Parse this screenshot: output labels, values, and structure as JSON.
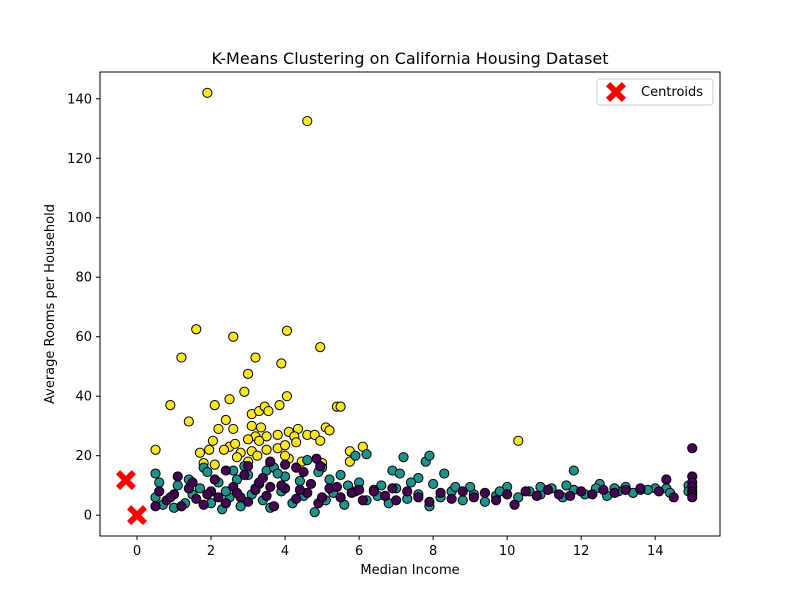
{
  "chart_data": {
    "type": "scatter",
    "title": "K-Means Clustering on California Housing Dataset",
    "xlabel": "Median Income",
    "ylabel": "Average Rooms per Household",
    "xlim": [
      -1,
      15.75
    ],
    "ylim": [
      -7,
      149
    ],
    "xticks": [
      0,
      2,
      4,
      6,
      8,
      10,
      12,
      14
    ],
    "yticks": [
      0,
      20,
      40,
      60,
      80,
      100,
      120,
      140
    ],
    "grid": false,
    "legend_position": "top-right",
    "legend": [
      "Centroids"
    ],
    "colors": {
      "purple": "#440154",
      "teal": "#21918c",
      "yellow": "#fde725",
      "centroid": "#ff0000"
    },
    "series": [
      {
        "color_key": "yellow",
        "points": [
          [
            1.9,
            142
          ],
          [
            4.6,
            132.5
          ],
          [
            1.6,
            62.5
          ],
          [
            4.05,
            62
          ],
          [
            2.6,
            60
          ],
          [
            1.2,
            53
          ],
          [
            3.2,
            53
          ],
          [
            4.95,
            56.5
          ],
          [
            3.9,
            51
          ],
          [
            3.0,
            47.5
          ],
          [
            2.9,
            41.5
          ],
          [
            0.9,
            37
          ],
          [
            2.1,
            37
          ],
          [
            2.5,
            39
          ],
          [
            4.05,
            40
          ],
          [
            3.85,
            37
          ],
          [
            5.4,
            36.5
          ],
          [
            5.5,
            36.5
          ],
          [
            3.1,
            34
          ],
          [
            3.3,
            35
          ],
          [
            3.45,
            36.5
          ],
          [
            3.55,
            35
          ],
          [
            2.4,
            32
          ],
          [
            1.4,
            31.5
          ],
          [
            3.1,
            30
          ],
          [
            2.2,
            29
          ],
          [
            2.6,
            29
          ],
          [
            3.35,
            29.5
          ],
          [
            3.8,
            27
          ],
          [
            4.1,
            28
          ],
          [
            4.35,
            29
          ],
          [
            5.1,
            29.5
          ],
          [
            5.2,
            28.5
          ],
          [
            2.05,
            25
          ],
          [
            2.5,
            23
          ],
          [
            2.65,
            24
          ],
          [
            3.2,
            26.5
          ],
          [
            3.5,
            26.5
          ],
          [
            3.0,
            25.5
          ],
          [
            3.3,
            25
          ],
          [
            4.25,
            26.5
          ],
          [
            4.6,
            27
          ],
          [
            4.8,
            27
          ],
          [
            4.95,
            25
          ],
          [
            4.3,
            24.5
          ],
          [
            1.95,
            22
          ],
          [
            1.7,
            21
          ],
          [
            2.35,
            22
          ],
          [
            2.8,
            21
          ],
          [
            3.1,
            21.5
          ],
          [
            3.5,
            22
          ],
          [
            3.8,
            22.5
          ],
          [
            4.0,
            23.5
          ],
          [
            0.5,
            22
          ],
          [
            5.75,
            21.5
          ],
          [
            6.1,
            23
          ],
          [
            10.3,
            25
          ],
          [
            1.8,
            17.5
          ],
          [
            2.1,
            17
          ],
          [
            3.0,
            18
          ],
          [
            3.6,
            17.5
          ],
          [
            4.1,
            19
          ],
          [
            4.45,
            18
          ],
          [
            5.0,
            17.5
          ],
          [
            5.75,
            18
          ],
          [
            2.7,
            19.5
          ],
          [
            3.25,
            20
          ],
          [
            4.0,
            20
          ]
        ]
      },
      {
        "color_key": "teal",
        "points": [
          [
            0.5,
            14
          ],
          [
            1.8,
            16
          ],
          [
            1.9,
            14.5
          ],
          [
            2.6,
            15
          ],
          [
            2.9,
            16.5
          ],
          [
            3.5,
            15
          ],
          [
            3.7,
            16
          ],
          [
            4.6,
            18.5
          ],
          [
            5.0,
            16
          ],
          [
            5.5,
            13.5
          ],
          [
            5.9,
            20
          ],
          [
            6.2,
            20.5
          ],
          [
            7.2,
            19.5
          ],
          [
            7.8,
            18
          ],
          [
            7.9,
            20
          ],
          [
            6.9,
            15
          ],
          [
            7.1,
            14
          ],
          [
            7.6,
            12.5
          ],
          [
            8.3,
            14
          ],
          [
            11.8,
            15
          ],
          [
            12.5,
            10.5
          ],
          [
            13.2,
            9.5
          ],
          [
            14.0,
            9
          ],
          [
            14.9,
            10
          ],
          [
            0.5,
            6
          ],
          [
            0.7,
            3.5
          ],
          [
            1.0,
            2.5
          ],
          [
            1.3,
            4
          ],
          [
            1.5,
            7
          ],
          [
            1.7,
            9
          ],
          [
            2.0,
            4
          ],
          [
            2.3,
            2
          ],
          [
            2.5,
            6
          ],
          [
            2.8,
            3
          ],
          [
            3.1,
            7
          ],
          [
            3.4,
            5
          ],
          [
            3.6,
            2.5
          ],
          [
            3.9,
            8
          ],
          [
            4.2,
            4
          ],
          [
            4.5,
            6.5
          ],
          [
            4.8,
            1
          ],
          [
            5.1,
            5
          ],
          [
            5.3,
            7.5
          ],
          [
            5.6,
            3.5
          ],
          [
            5.9,
            8
          ],
          [
            6.2,
            5
          ],
          [
            6.5,
            6.5
          ],
          [
            6.8,
            4
          ],
          [
            7.0,
            9
          ],
          [
            7.3,
            5.5
          ],
          [
            7.6,
            7
          ],
          [
            7.9,
            3
          ],
          [
            8.2,
            6
          ],
          [
            8.5,
            8
          ],
          [
            8.8,
            5
          ],
          [
            9.1,
            7
          ],
          [
            9.4,
            4.5
          ],
          [
            9.7,
            6.5
          ],
          [
            10.0,
            9.5
          ],
          [
            10.3,
            6
          ],
          [
            10.6,
            8
          ],
          [
            10.9,
            7
          ],
          [
            11.2,
            9
          ],
          [
            11.5,
            6
          ],
          [
            11.8,
            8.5
          ],
          [
            12.1,
            7
          ],
          [
            12.4,
            9
          ],
          [
            12.7,
            6.5
          ],
          [
            13.0,
            8
          ],
          [
            13.4,
            7.5
          ],
          [
            13.8,
            8.5
          ],
          [
            14.3,
            9
          ],
          [
            14.9,
            8
          ],
          [
            2.2,
            11
          ],
          [
            2.7,
            12
          ],
          [
            3.3,
            10.5
          ],
          [
            4.0,
            13
          ],
          [
            4.4,
            11.5
          ],
          [
            5.2,
            12
          ],
          [
            6.0,
            11
          ],
          [
            6.6,
            10
          ],
          [
            7.4,
            11
          ],
          [
            8.0,
            10.5
          ],
          [
            9.0,
            9.5
          ],
          [
            1.4,
            12
          ],
          [
            3.0,
            13.5
          ],
          [
            3.8,
            14
          ],
          [
            4.9,
            14.5
          ],
          [
            0.6,
            11
          ],
          [
            1.1,
            10
          ],
          [
            2.4,
            8
          ],
          [
            3.2,
            9
          ],
          [
            5.7,
            10
          ],
          [
            6.4,
            8.5
          ],
          [
            8.6,
            9.5
          ],
          [
            9.8,
            8
          ],
          [
            10.9,
            9.5
          ],
          [
            11.6,
            10
          ],
          [
            12.9,
            9
          ],
          [
            13.6,
            8.5
          ],
          [
            14.4,
            7.5
          ]
        ]
      },
      {
        "color_key": "purple",
        "points": [
          [
            1.1,
            13
          ],
          [
            2.4,
            15
          ],
          [
            3.0,
            16.5
          ],
          [
            3.6,
            18
          ],
          [
            4.0,
            17
          ],
          [
            4.3,
            16
          ],
          [
            4.5,
            14.5
          ],
          [
            4.85,
            19
          ],
          [
            4.95,
            16.5
          ],
          [
            2.9,
            13.5
          ],
          [
            3.4,
            12.5
          ],
          [
            0.5,
            3
          ],
          [
            0.6,
            8
          ],
          [
            0.8,
            5
          ],
          [
            1.0,
            7
          ],
          [
            1.2,
            3
          ],
          [
            1.4,
            9
          ],
          [
            1.6,
            5.5
          ],
          [
            1.8,
            3.5
          ],
          [
            2.0,
            8
          ],
          [
            2.2,
            6
          ],
          [
            2.4,
            4
          ],
          [
            2.6,
            9.5
          ],
          [
            2.8,
            6
          ],
          [
            3.0,
            4.5
          ],
          [
            3.2,
            8.5
          ],
          [
            3.5,
            6.5
          ],
          [
            3.7,
            3
          ],
          [
            4.0,
            9
          ],
          [
            4.3,
            5.5
          ],
          [
            4.6,
            7.5
          ],
          [
            4.9,
            4
          ],
          [
            5.2,
            9
          ],
          [
            5.5,
            6
          ],
          [
            5.8,
            7.5
          ],
          [
            6.1,
            5
          ],
          [
            6.4,
            8
          ],
          [
            6.7,
            6.5
          ],
          [
            7.0,
            5
          ],
          [
            7.3,
            8
          ],
          [
            7.6,
            6
          ],
          [
            7.9,
            4.5
          ],
          [
            8.2,
            7.5
          ],
          [
            8.5,
            5.5
          ],
          [
            8.8,
            8
          ],
          [
            9.1,
            6
          ],
          [
            9.4,
            7.5
          ],
          [
            9.7,
            5
          ],
          [
            10.0,
            7
          ],
          [
            10.2,
            3.5
          ],
          [
            10.5,
            8
          ],
          [
            10.8,
            6.5
          ],
          [
            11.1,
            8.5
          ],
          [
            11.4,
            7
          ],
          [
            11.7,
            6.5
          ],
          [
            12.0,
            8
          ],
          [
            12.3,
            7
          ],
          [
            12.6,
            8.5
          ],
          [
            12.9,
            7.5
          ],
          [
            13.2,
            8.5
          ],
          [
            13.6,
            9
          ],
          [
            14.1,
            8
          ],
          [
            14.3,
            12
          ],
          [
            14.5,
            6
          ],
          [
            15.0,
            22.5
          ],
          [
            15.0,
            13
          ],
          [
            15.0,
            11
          ],
          [
            15.0,
            9.5
          ],
          [
            15.0,
            8
          ],
          [
            15.0,
            7
          ],
          [
            15.0,
            6
          ],
          [
            1.5,
            11
          ],
          [
            2.1,
            12
          ],
          [
            3.3,
            11
          ],
          [
            3.9,
            10
          ],
          [
            4.7,
            10.5
          ],
          [
            5.4,
            9.5
          ],
          [
            6.0,
            8.5
          ],
          [
            6.9,
            9
          ],
          [
            0.9,
            6
          ],
          [
            1.9,
            7
          ],
          [
            2.7,
            7.5
          ],
          [
            3.6,
            9.5
          ],
          [
            4.4,
            8.5
          ],
          [
            5.0,
            6
          ]
        ]
      }
    ],
    "centroids": [
      [
        -0.3,
        11.8
      ],
      [
        0.0,
        0.0
      ]
    ]
  }
}
